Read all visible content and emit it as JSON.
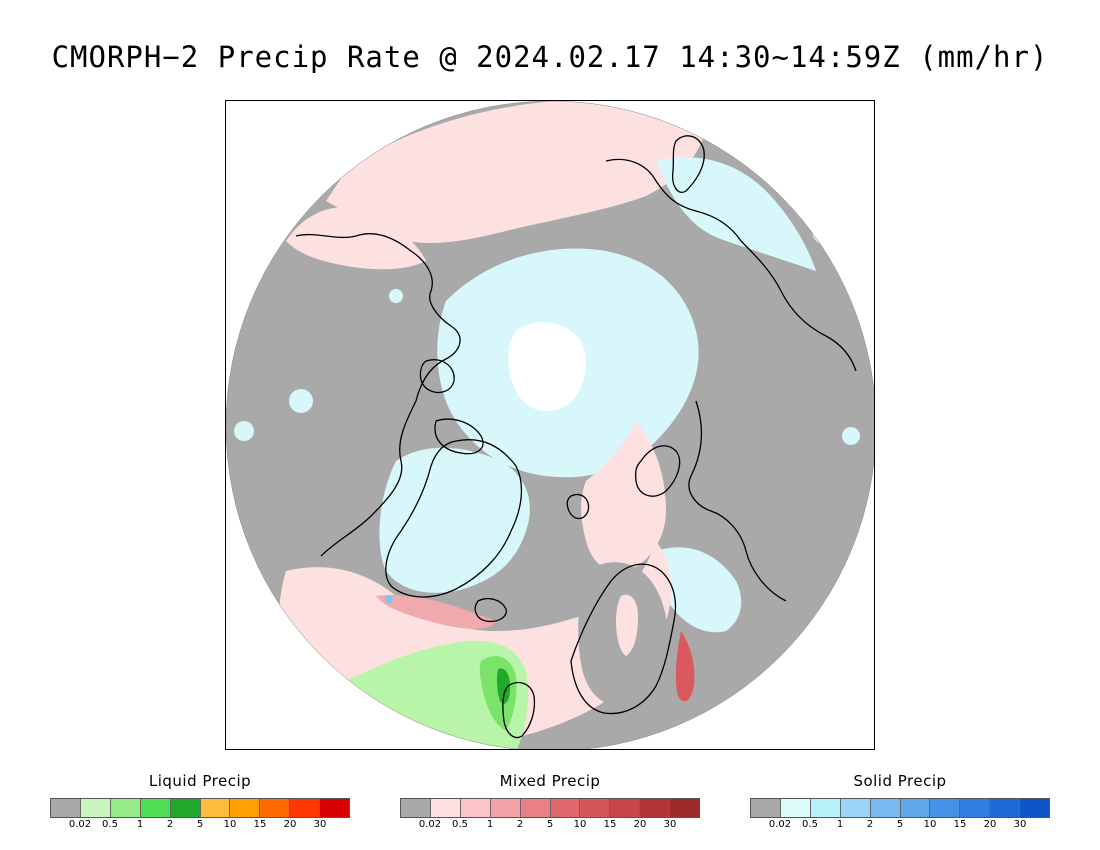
{
  "title": "CMORPH−2 Precip Rate @ 2024.02.17 14:30~14:59Z (mm/hr)",
  "map": {
    "projection": "north-polar-stereographic",
    "colors": {
      "no_precip": "#a9a9a9",
      "mixed_light": "#fde1e1",
      "solid_light": "#d8f7fb",
      "liquid_light": "#b9f5a8",
      "liquid_mid": "#7be36a",
      "liquid_heavy": "#21a82d",
      "mixed_mid": "#f0a9ad",
      "mixed_heavy": "#d9595f",
      "solid_mid": "#a9e8f4",
      "solid_heavy": "#7ec8f0",
      "coastline": "#000000",
      "background": "#ffffff"
    }
  },
  "legends": [
    {
      "title": "Liquid Precip",
      "colors": [
        "#a9a9a9",
        "#c9f5c0",
        "#95ec88",
        "#51dc55",
        "#20a82d",
        "#ffbc3d",
        "#ff9f00",
        "#ff6a00",
        "#ff3700",
        "#d80000"
      ],
      "ticks": [
        "0.02",
        "0.5",
        "1",
        "2",
        "5",
        "10",
        "15",
        "20",
        "30"
      ]
    },
    {
      "title": "Mixed Precip",
      "colors": [
        "#a9a9a9",
        "#fde1e1",
        "#fac4c8",
        "#f3a2a7",
        "#e98085",
        "#e0676c",
        "#d4555a",
        "#c8454a",
        "#b43538",
        "#9e2a2c"
      ],
      "ticks": [
        "0.02",
        "0.5",
        "1",
        "2",
        "5",
        "10",
        "15",
        "20",
        "30"
      ]
    },
    {
      "title": "Solid Precip",
      "colors": [
        "#a9a9a9",
        "#dcfbfd",
        "#b8f0f7",
        "#9ad4f6",
        "#78baf1",
        "#5ea8ec",
        "#4593e6",
        "#2f7fe0",
        "#1e6ad6",
        "#0f55c8"
      ],
      "ticks": [
        "0.02",
        "0.5",
        "1",
        "2",
        "5",
        "10",
        "15",
        "20",
        "30"
      ]
    }
  ]
}
